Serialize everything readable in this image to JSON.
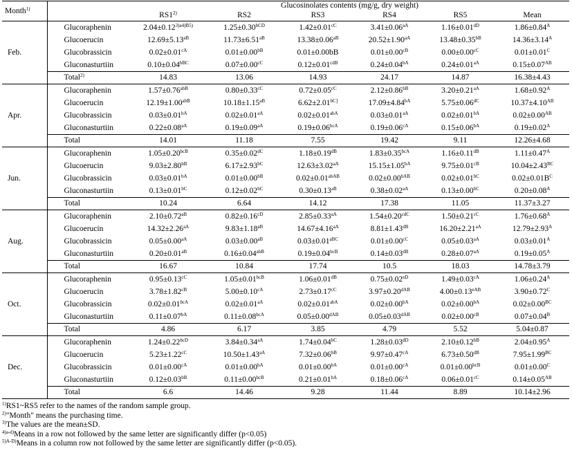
{
  "header": {
    "month": "Month",
    "month_sup": "1)",
    "group_title": "Glucosinolates contents (mg/g, dry weight)",
    "columns": [
      {
        "label": "RS1",
        "sup": "2)"
      },
      {
        "label": "RS2",
        "sup": ""
      },
      {
        "label": "RS3",
        "sup": ""
      },
      {
        "label": "RS4",
        "sup": ""
      },
      {
        "label": "RS5",
        "sup": ""
      },
      {
        "label": "Mean",
        "sup": ""
      }
    ]
  },
  "months": [
    {
      "name": "Feb.",
      "rows": [
        {
          "compound": "Glucoraphenin",
          "cells": [
            [
              "2.04±0.12",
              "3)a4)B5)"
            ],
            [
              "1.25±0.30",
              "bCD"
            ],
            [
              "1.42±0.01",
              "cC"
            ],
            [
              "3.41±0.06",
              "aA"
            ],
            [
              "1.16±0.01",
              "dD"
            ],
            [
              "1.86±0.84",
              "A"
            ]
          ]
        },
        {
          "compound": "Glucoerucin",
          "cells": [
            [
              "12.69±5.13",
              "aB"
            ],
            [
              "11.73±6.51",
              "aB"
            ],
            [
              "13.38±0.06",
              "aB"
            ],
            [
              "20.52±1.90",
              "aA"
            ],
            [
              "13.48±0.35",
              "bB"
            ],
            [
              "14.36±3.14",
              "A"
            ]
          ]
        },
        {
          "compound": "Glucobrassicin",
          "cells": [
            [
              "0.02±0.01",
              "cA"
            ],
            [
              "0.01±0.00",
              "bB"
            ],
            [
              "0.01±0.00bB",
              ""
            ],
            [
              "0.01±0.00",
              "cB"
            ],
            [
              "0.00±0.00",
              "cC"
            ],
            [
              "0.01±0.01",
              "C"
            ]
          ]
        },
        {
          "compound": "Gluconasturtiin",
          "cells": [
            [
              "0.10±0.04",
              "bBC"
            ],
            [
              "0.07±0.00",
              "cC"
            ],
            [
              "0.12±0.01",
              "cdB"
            ],
            [
              "0.24±0.04",
              "bA"
            ],
            [
              "0.24±0.01",
              "aA"
            ],
            [
              "0.15±0.07",
              "AB"
            ]
          ]
        }
      ],
      "total": {
        "label": "Total",
        "label_sup": "2)",
        "values": [
          "14.83",
          "13.06",
          "14.93",
          "24.17",
          "14.87",
          "16.38±4.43"
        ]
      }
    },
    {
      "name": "Apr.",
      "rows": [
        {
          "compound": "Glucoraphenin",
          "cells": [
            [
              "1.57±0.76",
              "abB"
            ],
            [
              "0.80±0.33",
              "cC"
            ],
            [
              "0.72±0.05",
              "cC"
            ],
            [
              "2.12±0.86",
              "bB"
            ],
            [
              "3.20±0.21",
              "aA"
            ],
            [
              "1.68±0.92",
              "A"
            ]
          ]
        },
        {
          "compound": "Glucoerucin",
          "cells": [
            [
              "12.19±1.00",
              "abB"
            ],
            [
              "10.18±1.15",
              "aB"
            ],
            [
              "6.62±2.01",
              "bC]"
            ],
            [
              "17.09±4.84",
              "bA"
            ],
            [
              "5.75±0.06",
              "dC"
            ],
            [
              "10.37±4.10",
              "AB"
            ]
          ]
        },
        {
          "compound": "Glucobrassicin",
          "cells": [
            [
              "0.03±0.01",
              "bA"
            ],
            [
              "0.02±0.01",
              "aA"
            ],
            [
              "0.02±0.01",
              "abA"
            ],
            [
              "0.03±0.01",
              "aA"
            ],
            [
              "0.02±0.01",
              "bA"
            ],
            [
              "0.02±0.00",
              "AB"
            ]
          ]
        },
        {
          "compound": "Gluconasturtiin",
          "cells": [
            [
              "0.22±0.08",
              "aA"
            ],
            [
              "0.19±0.09",
              "aA"
            ],
            [
              "0.19±0.06",
              "bcA"
            ],
            [
              "0.19±0.06",
              "cA"
            ],
            [
              "0.15±0.06",
              "bA"
            ],
            [
              "0.19±0.02",
              "A"
            ]
          ]
        }
      ],
      "total": {
        "label": "Total",
        "label_sup": "",
        "values": [
          "14.01",
          "11.18",
          "7.55",
          "19.42",
          "9.11",
          "12.26±4.68"
        ]
      }
    },
    {
      "name": "Jun.",
      "rows": [
        {
          "compound": "Glucoraphenin",
          "cells": [
            [
              "1.05±0.20",
              "bcB"
            ],
            [
              "0.35±0.02",
              "dC"
            ],
            [
              "1.18±0.19",
              "dB"
            ],
            [
              "1.83±0.35",
              "bcA"
            ],
            [
              "1.16±0.11",
              "dB"
            ],
            [
              "1.11±0.47",
              "A"
            ]
          ]
        },
        {
          "compound": "Glucoerucin",
          "cells": [
            [
              "9.03±2.80",
              "bB"
            ],
            [
              "6.17±2.93",
              "bC"
            ],
            [
              "12.63±3.02",
              "aA"
            ],
            [
              "15.15±1.05",
              "bA"
            ],
            [
              "9.75±0.01",
              "cB"
            ],
            [
              "10.04±2.43",
              "BC"
            ]
          ]
        },
        {
          "compound": "Glucobrassicin",
          "cells": [
            [
              "0.03±0.01",
              "bA"
            ],
            [
              "0.01±0.00",
              "bB"
            ],
            [
              "0.02±0.01",
              "abAB"
            ],
            [
              "0.02±0.00",
              "bAB"
            ],
            [
              "0.02±0.01",
              "bC"
            ],
            [
              "0.02±0.01B",
              "C"
            ]
          ]
        },
        {
          "compound": "Gluconasturtiin",
          "cells": [
            [
              "0.13±0.01",
              "bC"
            ],
            [
              "0.12±0.02",
              "bC"
            ],
            [
              "0.30±0.13",
              "aB"
            ],
            [
              "0.38±0.02",
              "aA"
            ],
            [
              "0.13±0.00",
              "bC"
            ],
            [
              "0.20±0.08",
              "A"
            ]
          ]
        }
      ],
      "total": {
        "label": "Total",
        "label_sup": "",
        "values": [
          "10.24",
          "6.64",
          "14.12",
          "17.38",
          "11.05",
          "11.37±3.27"
        ]
      }
    },
    {
      "name": "Aug.",
      "rows": [
        {
          "compound": "Glucoraphenin",
          "cells": [
            [
              "2.10±0.72",
              "aB"
            ],
            [
              "0.82±0.16",
              "cD"
            ],
            [
              "2.85±0.33",
              "aA"
            ],
            [
              "1.54±0.20",
              "cdC"
            ],
            [
              "1.50±0.21",
              "cC"
            ],
            [
              "1.76±0.68",
              "A"
            ]
          ]
        },
        {
          "compound": "Glucoerucin",
          "cells": [
            [
              "14.32±2.26",
              "aA"
            ],
            [
              "9.83±1.18",
              "aB"
            ],
            [
              "14.67±4.16",
              "aA"
            ],
            [
              "8.81±1.43",
              "dB"
            ],
            [
              "16.20±2.21",
              "aA"
            ],
            [
              "12.79±2.93",
              "A"
            ]
          ]
        },
        {
          "compound": "Glucobrassicin",
          "cells": [
            [
              "0.05±0.00",
              "aA"
            ],
            [
              "0.03±0.00",
              "aB"
            ],
            [
              "0.03±0.01",
              "aBC"
            ],
            [
              "0.01±0.00",
              "cC"
            ],
            [
              "0.05±0.03",
              "aA"
            ],
            [
              "0.03±0.01",
              "A"
            ]
          ]
        },
        {
          "compound": "Gluconasturtiin",
          "cells": [
            [
              "0.20±0.01",
              "aB"
            ],
            [
              "0.16±0.04",
              "abB"
            ],
            [
              "0.19±0.04",
              "bcB"
            ],
            [
              "0.14±0.03",
              "dB"
            ],
            [
              "0.28±0.07",
              "aA"
            ],
            [
              "0.19±0.05",
              "A"
            ]
          ]
        }
      ],
      "total": {
        "label": "Total",
        "label_sup": "",
        "values": [
          "16.67",
          "10.84",
          "17.74",
          "10.5",
          "18.03",
          "14.78±3.79"
        ]
      }
    },
    {
      "name": "Oct.",
      "rows": [
        {
          "compound": "Glucoraphenin",
          "cells": [
            [
              "0.95±0.13",
              "cC"
            ],
            [
              "1.05±0.01",
              "bcB"
            ],
            [
              "1.06±0.01",
              "dB"
            ],
            [
              "0.75±0.02",
              "eD"
            ],
            [
              "1.49±0.03",
              "cA"
            ],
            [
              "1.06±0.24",
              "A"
            ]
          ]
        },
        {
          "compound": "Glucoerucin",
          "cells": [
            [
              "3.78±1.82",
              "cB"
            ],
            [
              "5.00±0.10",
              "cA"
            ],
            [
              "2.73±0.17",
              "cC"
            ],
            [
              "3.97±0.20",
              "dAB"
            ],
            [
              "4.00±0.13",
              "eAB"
            ],
            [
              "3.90±0.72",
              "C"
            ]
          ]
        },
        {
          "compound": "Glucobrassicin",
          "cells": [
            [
              "0.02±0.01",
              "bcA"
            ],
            [
              "0.02±0.01",
              "aA"
            ],
            [
              "0.02±0.01",
              "abA"
            ],
            [
              "0.02±0.00",
              "bA"
            ],
            [
              "0.02±0.00",
              "bA"
            ],
            [
              "0.02±0.00",
              "BC"
            ]
          ]
        },
        {
          "compound": "Gluconasturtiin",
          "cells": [
            [
              "0.11±0.07",
              "bA"
            ],
            [
              "0.11±0.08",
              "bcA"
            ],
            [
              "0.05±0.00",
              "dAB"
            ],
            [
              "0.05±0.03",
              "dAB"
            ],
            [
              "0.02±0.00",
              "cB"
            ],
            [
              "0.07±0.04",
              "B"
            ]
          ]
        }
      ],
      "total": {
        "label": "Total",
        "label_sup": "",
        "values": [
          "4.86",
          "6.17",
          "3.85",
          "4.79",
          "5.52",
          "5.04±0.87"
        ]
      }
    },
    {
      "name": "Dec.",
      "rows": [
        {
          "compound": "Glucoraphenin",
          "cells": [
            [
              "1.24±0.22",
              "bcD"
            ],
            [
              "3.84±0.34",
              "aA"
            ],
            [
              "1.74±0.04",
              "bC"
            ],
            [
              "1.28±0.03",
              "dD"
            ],
            [
              "2.10±0.12",
              "bB"
            ],
            [
              "2.04±0.95",
              "A"
            ]
          ]
        },
        {
          "compound": "Glucoerucin",
          "cells": [
            [
              "5.23±1.22",
              "cC"
            ],
            [
              "10.50±1.43",
              "aA"
            ],
            [
              "7.32±0.06",
              "bB"
            ],
            [
              "9.97±0.47",
              "cA"
            ],
            [
              "6.73±0.50",
              "dB"
            ],
            [
              "7.95±1.99",
              "BC"
            ]
          ]
        },
        {
          "compound": "Glucobrassicin",
          "cells": [
            [
              "0.01±0.00",
              "cA"
            ],
            [
              "0.01±0.00",
              "bA"
            ],
            [
              "0.01±0.00",
              "bA"
            ],
            [
              "0.01±0.00",
              "cA"
            ],
            [
              "0.01±0.00",
              "bcB"
            ],
            [
              "0.01±0.00",
              "C"
            ]
          ]
        },
        {
          "compound": "Gluconasturtiin",
          "cells": [
            [
              "0.12±0.03",
              "bB"
            ],
            [
              "0.11±0.00",
              "bcB"
            ],
            [
              "0.21±0.01",
              "bA"
            ],
            [
              "0.18±0.06",
              "cA"
            ],
            [
              "0.06±0.01",
              "cC"
            ],
            [
              "0.14±0.05",
              "AB"
            ]
          ]
        }
      ],
      "total": {
        "label": "Total",
        "label_sup": "",
        "values": [
          "6.6",
          "14.46",
          "9.28",
          "11.44",
          "8.89",
          "10.14±2.96"
        ]
      }
    }
  ],
  "footnotes": [
    {
      "sup": "1)",
      "text": "RS1~RS5 refer to the names of the random sample group."
    },
    {
      "sup": "2)",
      "text": "\"Month\" means the purchasing time."
    },
    {
      "sup": "3)",
      "text": "The values are the mean±SD."
    },
    {
      "sup": "4)a-d)",
      "text": "Means in a row not followed by the same letter are significantly differ (p<0.05)"
    },
    {
      "sup": "5)A-D)",
      "text": "Means in a column row not followed by the same letter are significantly differ (p<0.05)."
    }
  ]
}
